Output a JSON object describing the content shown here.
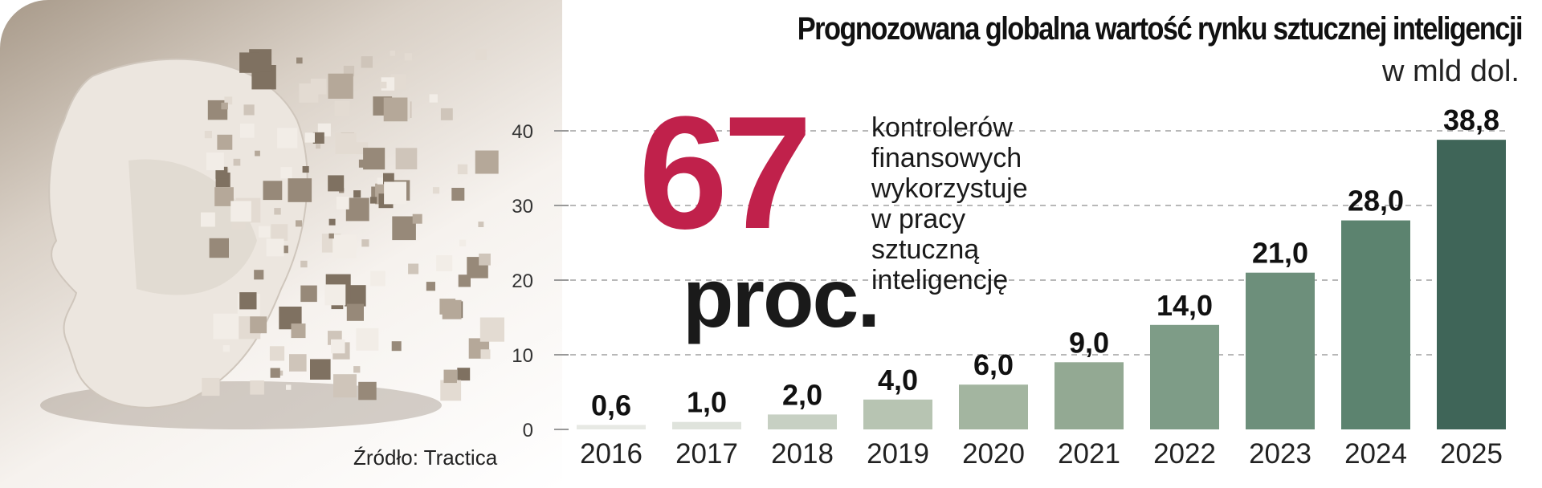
{
  "chart_data": {
    "type": "bar",
    "title": "Prognozowana globalna wartość rynku sztucznej inteligencji",
    "unit": "w mld dol.",
    "categories": [
      "2016",
      "2017",
      "2018",
      "2019",
      "2020",
      "2021",
      "2022",
      "2023",
      "2024",
      "2025"
    ],
    "values": [
      0.6,
      1.0,
      2.0,
      4.0,
      6.0,
      9.0,
      14.0,
      21.0,
      28.0,
      38.8
    ],
    "data_labels": [
      "0,6",
      "1,0",
      "2,0",
      "4,0",
      "6,0",
      "9,0",
      "14,0",
      "21,0",
      "28,0",
      "38,8"
    ],
    "yticks": [
      0,
      10,
      20,
      30,
      40
    ],
    "ylim": [
      0,
      40
    ],
    "grid": true,
    "bar_colors": [
      "#e7e9e4",
      "#dfe3dc",
      "#c7d0c3",
      "#b7c4b2",
      "#a3b5a0",
      "#93a993",
      "#7e9c87",
      "#6d8f7b",
      "#5c836f",
      "#3f6558"
    ],
    "xlabel": "",
    "ylabel": ""
  },
  "callout": {
    "number": "67",
    "unit": "proc.",
    "lines": [
      "kontrolerów",
      "finansowych",
      "wykorzystuje",
      "w pracy",
      "sztuczną",
      "inteligencję"
    ],
    "number_color": "#c0214b"
  },
  "source": "Źródło: Tractica",
  "illustration": "pixelated-face-icon"
}
